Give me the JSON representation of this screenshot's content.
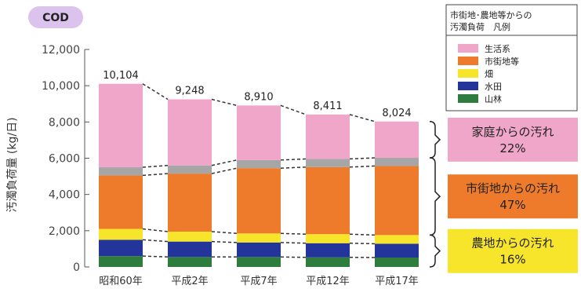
{
  "chart_data": {
    "type": "bar",
    "stacked": true,
    "badge": "COD",
    "ylabel": "汚濁負荷量 (kg/日)",
    "ylim": [
      0,
      12000
    ],
    "yticks": [
      0,
      2000,
      4000,
      6000,
      8000,
      10000,
      12000
    ],
    "ytick_labels": [
      "0",
      "2,000",
      "4,000",
      "6,000",
      "8,000",
      "10,000",
      "12,000"
    ],
    "categories": [
      "昭和60年",
      "平成2年",
      "平成7年",
      "平成12年",
      "平成17年"
    ],
    "totals": [
      10104,
      9248,
      8910,
      8411,
      8024
    ],
    "total_labels": [
      "10,104",
      "9,248",
      "8,910",
      "8,411",
      "8,024"
    ],
    "series": [
      {
        "name": "山林",
        "color": "#2e7d3e",
        "values": [
          600,
          550,
          550,
          530,
          520
        ]
      },
      {
        "name": "水田",
        "color": "#23349a",
        "values": [
          900,
          850,
          800,
          780,
          760
        ]
      },
      {
        "name": "畑",
        "color": "#f6e52a",
        "values": [
          600,
          550,
          500,
          500,
          480
        ]
      },
      {
        "name": "市街地等",
        "color": "#ee7a2c",
        "values": [
          2950,
          3200,
          3600,
          3700,
          3810
        ]
      },
      {
        "name": "",
        "color": "#a6a6a6",
        "values": [
          450,
          450,
          450,
          450,
          450
        ]
      },
      {
        "name": "生活系",
        "color": "#f0a6c8",
        "values": [
          4604,
          3648,
          3010,
          2451,
          2004
        ]
      }
    ],
    "legend": {
      "title_line1": "市街地･農地等からの",
      "title_line2": "汚濁負荷　凡例",
      "entries": [
        {
          "label": "生活系",
          "color": "#f0a6c8"
        },
        {
          "label": "市街地等",
          "color": "#ee7a2c"
        },
        {
          "label": "畑",
          "color": "#f6e52a"
        },
        {
          "label": "水田",
          "color": "#23349a"
        },
        {
          "label": "山林",
          "color": "#2e7d3e"
        }
      ]
    },
    "annotations": [
      {
        "line1": "家庭からの汚れ",
        "line2": "22%",
        "color": "#f0a6c8"
      },
      {
        "line1": "市街地からの汚れ",
        "line2": "47%",
        "color": "#ee7a2c"
      },
      {
        "line1": "農地からの汚れ",
        "line2": "16%",
        "color": "#f6e52a"
      }
    ],
    "annotation_spans": [
      {
        "from_series": 5,
        "to_series": 5
      },
      {
        "from_series": 3,
        "to_series": 4
      },
      {
        "from_series": 0,
        "to_series": 2
      }
    ]
  }
}
